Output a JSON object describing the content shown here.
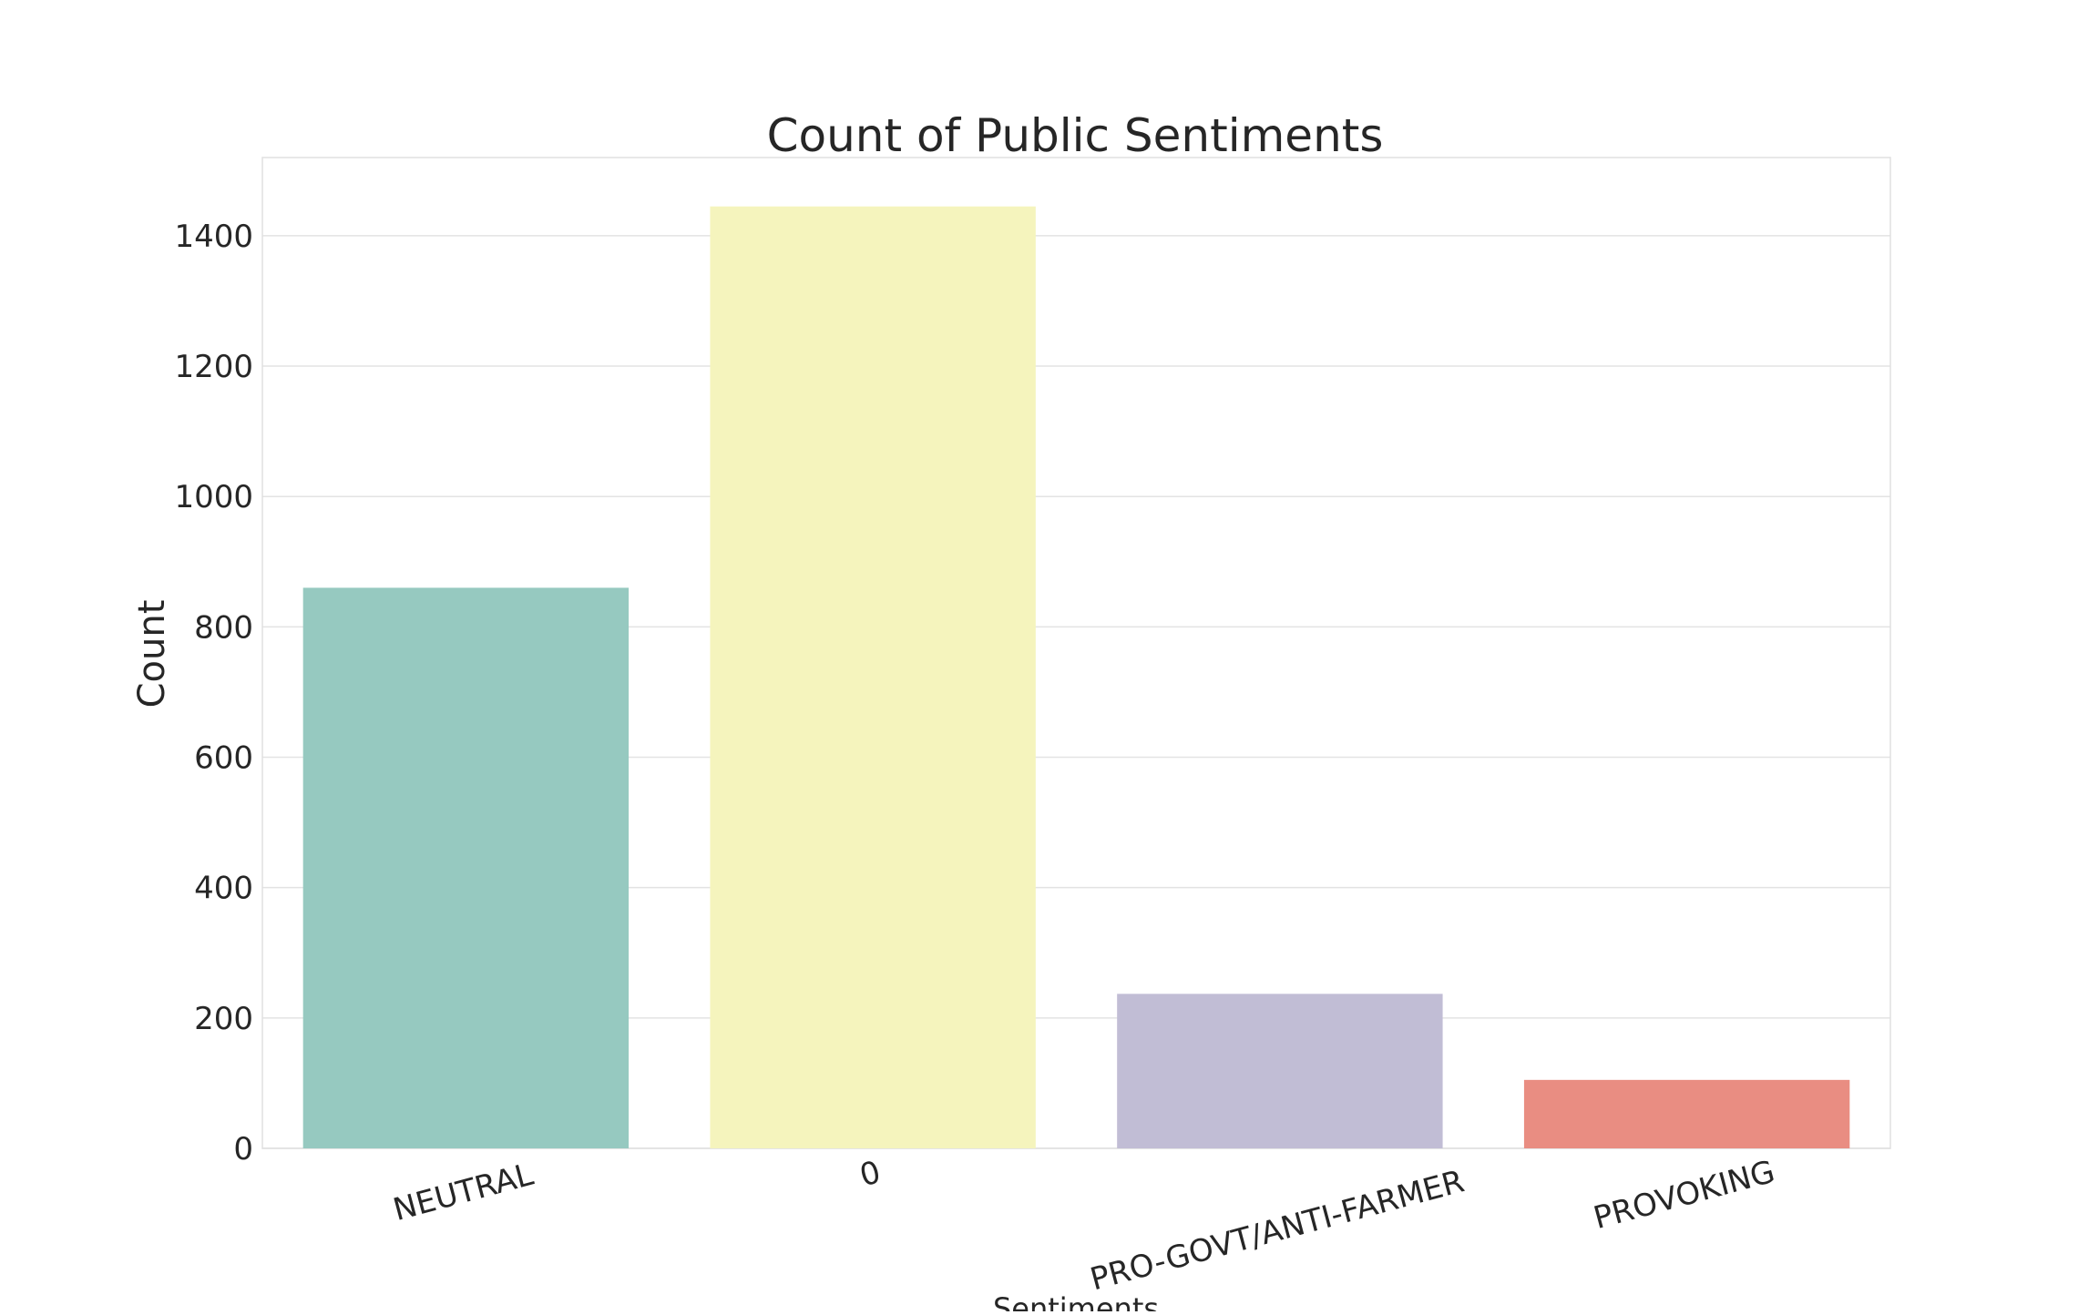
{
  "chart_data": {
    "type": "bar",
    "title": "Count of Public Sentiments",
    "xlabel": "Sentiments",
    "ylabel": "Count",
    "categories": [
      "NEUTRAL",
      "0",
      "PRO-GOVT/ANTI-FARMER",
      "PROVOKING"
    ],
    "values": [
      860,
      1445,
      237,
      105
    ],
    "colors": [
      "#96c9c0",
      "#f5f4bd",
      "#c1bdd5",
      "#e98d82"
    ],
    "ylim": [
      0,
      1520
    ],
    "yticks": [
      0,
      200,
      400,
      600,
      800,
      1000,
      1200,
      1400
    ],
    "grid": true,
    "legend": false
  }
}
